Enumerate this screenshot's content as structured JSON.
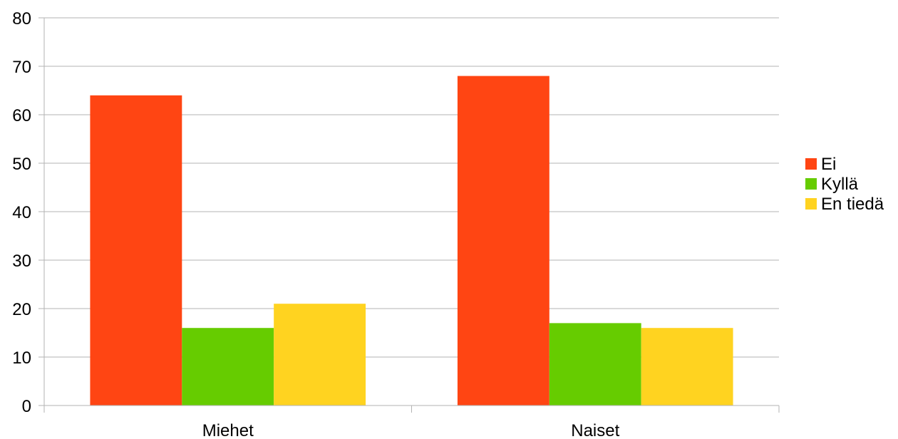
{
  "chart_data": {
    "type": "bar",
    "title": "",
    "xlabel": "",
    "ylabel": "",
    "categories": [
      "Miehet",
      "Naiset"
    ],
    "series": [
      {
        "name": "Ei",
        "values": [
          64,
          68
        ],
        "color": "#ff4513"
      },
      {
        "name": "Kyllä",
        "values": [
          16,
          17
        ],
        "color": "#66cc00"
      },
      {
        "name": "En tiedä",
        "values": [
          21,
          16
        ],
        "color": "#ffd320"
      }
    ],
    "ylim": [
      0,
      80
    ],
    "yticks": [
      "0",
      "10",
      "20",
      "30",
      "40",
      "50",
      "60",
      "70",
      "80"
    ],
    "grid": true,
    "legend_position": "right"
  }
}
